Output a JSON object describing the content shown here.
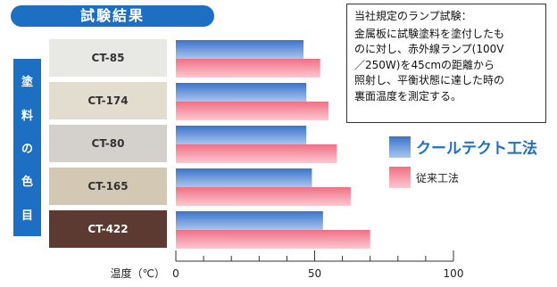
{
  "title": "試験結果",
  "note": {
    "heading": "当社規定のランプ試験：",
    "lines": [
      "金属板に試験塗料を塗付したも",
      "のに対し、赤外線ランプ(100V",
      "／250W)を45cmの距離から",
      "照射し、平衡状態に達した時の",
      "裏面温度を測定する。"
    ]
  },
  "side_label": [
    "塗",
    "料",
    "の",
    "色",
    "目"
  ],
  "colors": {
    "brand": "#1d6fc4",
    "series_cool": "#4a7fd0",
    "series_conventional": "#f27a8e"
  },
  "chart_data": {
    "type": "bar",
    "orientation": "horizontal",
    "categories": [
      "CT-85",
      "CT-174",
      "CT-80",
      "CT-165",
      "CT-422"
    ],
    "category_swatch_colors": [
      "#e8e8e4",
      "#e3ddd0",
      "#d4d0cb",
      "#d3c8b4",
      "#5c3a31"
    ],
    "category_label_colors": [
      "#333333",
      "#333333",
      "#333333",
      "#333333",
      "#ffffff"
    ],
    "series": [
      {
        "name": "クールテクト工法",
        "values": [
          46,
          47,
          47,
          49,
          53
        ]
      },
      {
        "name": "従来工法",
        "values": [
          52,
          55,
          58,
          63,
          70
        ]
      }
    ],
    "xlabel": "温度（℃）",
    "xlim": [
      0,
      100
    ],
    "xticks": [
      0,
      50,
      100
    ],
    "legend": "right"
  }
}
